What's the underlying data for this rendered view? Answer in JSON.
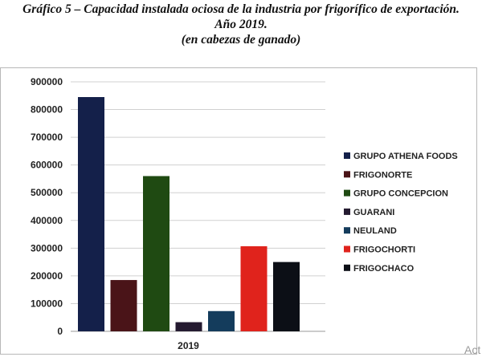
{
  "header": {
    "title": "Gráfico 5 – Capacidad instalada ociosa de la industria por frigorífico de exportación.",
    "subtitle": "Año 2019.",
    "unit_note": "(en cabezas de ganado)"
  },
  "watermark": "Act",
  "chart_data": {
    "type": "bar",
    "categories": [
      "2019"
    ],
    "series": [
      {
        "name": "GRUPO ATHENA FOODS",
        "values": [
          845000
        ],
        "color": "#14204a"
      },
      {
        "name": "FRIGONORTE",
        "values": [
          185000
        ],
        "color": "#4a1418"
      },
      {
        "name": "GRUPO CONCEPCION",
        "values": [
          560000
        ],
        "color": "#1f4a12"
      },
      {
        "name": "GUARANI",
        "values": [
          33000
        ],
        "color": "#241a30"
      },
      {
        "name": "NEULAND",
        "values": [
          73000
        ],
        "color": "#143c5c"
      },
      {
        "name": "FRIGOCHORTI",
        "values": [
          307000
        ],
        "color": "#e0231c"
      },
      {
        "name": "FRIGOCHACO",
        "values": [
          250000
        ],
        "color": "#0c0f16"
      }
    ],
    "y_ticks": [
      "0",
      "100000",
      "200000",
      "300000",
      "400000",
      "500000",
      "600000",
      "700000",
      "800000",
      "900000"
    ],
    "ylim": [
      0,
      900000
    ],
    "grid": true,
    "legend_position": "right"
  }
}
